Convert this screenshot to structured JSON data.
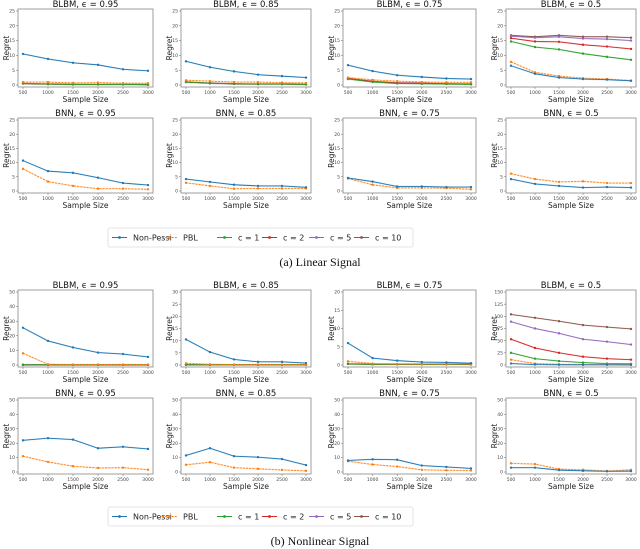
{
  "colors": {
    "Non-Pessi": "#1f77b4",
    "PBL": "#ff7f0e",
    "c = 1": "#2ca02c",
    "c = 2": "#d62728",
    "c = 5": "#9467bd",
    "c = 10": "#8c564b"
  },
  "legend": [
    "Non-Pessi",
    "PBL",
    "c = 1",
    "c = 2",
    "c = 5",
    "c = 10"
  ],
  "chart_data": [
    {
      "type": "line",
      "caption": "(a) Linear Signal",
      "xlabel": "Sample Size",
      "ylabel": "Regret",
      "xticks": [
        500,
        1000,
        1500,
        2000,
        2500,
        3000
      ],
      "panels": [
        {
          "title": "BLBM, ϵ = 0.95",
          "ylim": [
            0,
            25
          ],
          "yticks": [
            0,
            5,
            10,
            15,
            20,
            25
          ],
          "series": [
            {
              "name": "Non-Pessi",
              "values": [
                10.5,
                8.8,
                7.5,
                6.8,
                5.3,
                4.8
              ]
            },
            {
              "name": "PBL",
              "values": [
                1,
                1,
                0.7,
                0.8,
                0.6,
                0.6
              ]
            },
            {
              "name": "c = 1",
              "values": [
                0.5,
                0.3,
                0.2,
                0.2,
                0.2,
                0.1
              ]
            },
            {
              "name": "c = 2",
              "values": [
                0.5,
                0.3,
                0.2,
                0.2,
                0.2,
                0.1
              ]
            },
            {
              "name": "c = 5",
              "values": [
                0.5,
                0.3,
                0.2,
                0.2,
                0.2,
                0.1
              ]
            },
            {
              "name": "c = 10",
              "values": [
                0.5,
                0.3,
                0.2,
                0.2,
                0.2,
                0.1
              ]
            }
          ]
        },
        {
          "title": "BLBM, ϵ = 0.85",
          "ylim": [
            0,
            25
          ],
          "yticks": [
            0,
            5,
            10,
            15,
            20,
            25
          ],
          "series": [
            {
              "name": "Non-Pessi",
              "values": [
                8,
                6,
                4.6,
                3.5,
                3,
                2.5
              ]
            },
            {
              "name": "PBL",
              "values": [
                1.6,
                1.3,
                1,
                1,
                0.8,
                0.7
              ]
            },
            {
              "name": "c = 1",
              "values": [
                1,
                0.6,
                0.4,
                0.3,
                0.3,
                0.2
              ]
            },
            {
              "name": "c = 2",
              "values": [
                1,
                0.6,
                0.4,
                0.3,
                0.3,
                0.2
              ]
            },
            {
              "name": "c = 5",
              "values": [
                1,
                0.6,
                0.4,
                0.3,
                0.3,
                0.2
              ]
            },
            {
              "name": "c = 10",
              "values": [
                1,
                0.6,
                0.4,
                0.3,
                0.3,
                0.2
              ]
            }
          ]
        },
        {
          "title": "BLBM, ϵ = 0.75",
          "ylim": [
            0,
            25
          ],
          "yticks": [
            0,
            5,
            10,
            15,
            20,
            25
          ],
          "series": [
            {
              "name": "Non-Pessi",
              "values": [
                6.7,
                4.7,
                3.3,
                2.7,
                2.2,
                2
              ]
            },
            {
              "name": "PBL",
              "values": [
                2.5,
                1.7,
                1.3,
                1,
                0.9,
                0.9
              ]
            },
            {
              "name": "c = 1",
              "values": [
                2,
                1,
                0.5,
                0.4,
                0.3,
                0.2
              ]
            },
            {
              "name": "c = 2",
              "values": [
                2.2,
                1.2,
                0.7,
                0.6,
                0.4,
                0.3
              ]
            },
            {
              "name": "c = 5",
              "values": [
                2.2,
                1.2,
                0.7,
                0.6,
                0.4,
                0.3
              ]
            },
            {
              "name": "c = 10",
              "values": [
                2.2,
                1.2,
                0.7,
                0.6,
                0.4,
                0.3
              ]
            }
          ]
        },
        {
          "title": "BLBM, ϵ = 0.5",
          "ylim": [
            0,
            25
          ],
          "yticks": [
            0,
            5,
            10,
            15,
            20,
            25
          ],
          "series": [
            {
              "name": "Non-Pessi",
              "values": [
                6.5,
                3.8,
                2.5,
                2,
                1.8,
                1.4
              ]
            },
            {
              "name": "PBL",
              "values": [
                7.8,
                4.3,
                3,
                2.3,
                2,
                1.5
              ]
            },
            {
              "name": "c = 1",
              "values": [
                14.7,
                12.8,
                12,
                10.6,
                9.5,
                8.5
              ]
            },
            {
              "name": "c = 2",
              "values": [
                15.8,
                14.7,
                14.6,
                13.6,
                13,
                12.2
              ]
            },
            {
              "name": "c = 5",
              "values": [
                16.5,
                16,
                16.3,
                15.7,
                15.5,
                15
              ]
            },
            {
              "name": "c = 10",
              "values": [
                16.8,
                16.3,
                16.8,
                16.3,
                16.3,
                16
              ]
            }
          ]
        },
        {
          "title": "BNN, ϵ = 0.95",
          "ylim": [
            0,
            25
          ],
          "yticks": [
            0,
            5,
            10,
            15,
            20,
            25
          ],
          "series": [
            {
              "name": "Non-Pessi",
              "values": [
                10.7,
                7,
                6.4,
                4.7,
                2.8,
                2.1
              ]
            },
            {
              "name": "PBL",
              "values": [
                7.8,
                3.3,
                1.8,
                0.8,
                0.8,
                0.6
              ]
            }
          ]
        },
        {
          "title": "BNN, ϵ = 0.85",
          "ylim": [
            0,
            25
          ],
          "yticks": [
            0,
            5,
            10,
            15,
            20,
            25
          ],
          "series": [
            {
              "name": "Non-Pessi",
              "values": [
                4.2,
                3.2,
                2.2,
                1.8,
                1.8,
                1.3
              ]
            },
            {
              "name": "PBL",
              "values": [
                2.9,
                1.8,
                0.8,
                0.9,
                0.9,
                0.9
              ]
            }
          ]
        },
        {
          "title": "BNN, ϵ = 0.75",
          "ylim": [
            0,
            25
          ],
          "yticks": [
            0,
            5,
            10,
            15,
            20,
            25
          ],
          "series": [
            {
              "name": "Non-Pessi",
              "values": [
                4.6,
                3.3,
                1.6,
                1.6,
                1.4,
                1.4
              ]
            },
            {
              "name": "PBL",
              "values": [
                4.4,
                2.2,
                1.1,
                1.1,
                1,
                0.6
              ]
            }
          ]
        },
        {
          "title": "BNN, ϵ = 0.5",
          "ylim": [
            0,
            25
          ],
          "yticks": [
            0,
            5,
            10,
            15,
            20,
            25
          ],
          "series": [
            {
              "name": "Non-Pessi",
              "values": [
                4.2,
                2.5,
                1.8,
                1.2,
                1.4,
                1.2
              ]
            },
            {
              "name": "PBL",
              "values": [
                6.1,
                4.2,
                3.2,
                3.4,
                2.8,
                2.8
              ]
            }
          ]
        }
      ]
    },
    {
      "type": "line",
      "caption": "(b) Nonlinear Signal",
      "xlabel": "Sample Size",
      "ylabel": "Regret",
      "xticks": [
        500,
        1000,
        1500,
        2000,
        2500,
        3000
      ],
      "panels": [
        {
          "title": "BLBM, ϵ = 0.95",
          "ylim": [
            0,
            50
          ],
          "yticks": [
            0,
            10,
            20,
            30,
            40,
            50
          ],
          "series": [
            {
              "name": "Non-Pessi",
              "values": [
                25.5,
                16.5,
                12,
                8.5,
                7.5,
                5.5
              ]
            },
            {
              "name": "PBL",
              "values": [
                8,
                0.5,
                0.3,
                0.3,
                0.3,
                0.3
              ]
            },
            {
              "name": "c = 1",
              "values": [
                0.1,
                0.1,
                0.1,
                0.1,
                0.1,
                0.1
              ]
            },
            {
              "name": "c = 2",
              "values": [
                0.1,
                0.1,
                0.1,
                0.1,
                0.1,
                0.1
              ]
            },
            {
              "name": "c = 5",
              "values": [
                0.1,
                0.1,
                0.1,
                0.1,
                0.1,
                0.1
              ]
            },
            {
              "name": "c = 10",
              "values": [
                0.1,
                0.1,
                0.1,
                0.1,
                0.1,
                0.1
              ]
            }
          ]
        },
        {
          "title": "BLBM, ϵ = 0.85",
          "ylim": [
            0,
            30
          ],
          "yticks": [
            0,
            5,
            10,
            15,
            20,
            25,
            30
          ],
          "series": [
            {
              "name": "Non-Pessi",
              "values": [
                10.5,
                5.3,
                2.3,
                1.3,
                1.3,
                0.8
              ]
            },
            {
              "name": "PBL",
              "values": [
                0.7,
                0.3,
                0.2,
                0.2,
                0.2,
                0.2
              ]
            },
            {
              "name": "c = 1",
              "values": [
                0.1,
                0.1,
                0.1,
                0.1,
                0.1,
                0.1
              ]
            },
            {
              "name": "c = 2",
              "values": [
                0.1,
                0.1,
                0.1,
                0.1,
                0.1,
                0.1
              ]
            },
            {
              "name": "c = 5",
              "values": [
                0.1,
                0.1,
                0.1,
                0.1,
                0.1,
                0.1
              ]
            },
            {
              "name": "c = 10",
              "values": [
                0.1,
                0.1,
                0.1,
                0.1,
                0.1,
                0.1
              ]
            }
          ]
        },
        {
          "title": "BLBM, ϵ = 0.75",
          "ylim": [
            0,
            20
          ],
          "yticks": [
            0,
            5,
            10,
            15,
            20
          ],
          "series": [
            {
              "name": "Non-Pessi",
              "values": [
                6,
                1.9,
                1.2,
                0.8,
                0.7,
                0.5
              ]
            },
            {
              "name": "PBL",
              "values": [
                1,
                0.4,
                0.3,
                0.3,
                0.3,
                0.3
              ]
            },
            {
              "name": "c = 1",
              "values": [
                0.3,
                0.2,
                0.2,
                0.2,
                0.2,
                0.2
              ]
            },
            {
              "name": "c = 2",
              "values": [
                0.3,
                0.2,
                0.2,
                0.2,
                0.2,
                0.2
              ]
            },
            {
              "name": "c = 5",
              "values": [
                0.3,
                0.2,
                0.2,
                0.2,
                0.2,
                0.2
              ]
            },
            {
              "name": "c = 10",
              "values": [
                0.3,
                0.2,
                0.2,
                0.2,
                0.2,
                0.2
              ]
            }
          ]
        },
        {
          "title": "BLBM, ϵ = 0.5",
          "ylim": [
            0,
            150
          ],
          "yticks": [
            0,
            25,
            50,
            75,
            100,
            125,
            150
          ],
          "series": [
            {
              "name": "Non-Pessi",
              "values": [
                3,
                1,
                0.5,
                0.3,
                0.3,
                0.2
              ]
            },
            {
              "name": "PBL",
              "values": [
                11,
                3,
                1.5,
                1,
                0.8,
                0.7
              ]
            },
            {
              "name": "c = 1",
              "values": [
                25,
                13,
                8,
                5,
                3,
                2.5
              ]
            },
            {
              "name": "c = 2",
              "values": [
                53,
                35,
                25,
                17,
                13,
                11
              ]
            },
            {
              "name": "c = 5",
              "values": [
                89,
                75,
                65,
                53,
                48,
                42
              ]
            },
            {
              "name": "c = 10",
              "values": [
                104,
                97,
                90,
                82,
                78,
                74
              ]
            }
          ]
        },
        {
          "title": "BNN, ϵ = 0.95",
          "ylim": [
            0,
            50
          ],
          "yticks": [
            0,
            10,
            20,
            30,
            40,
            50
          ],
          "series": [
            {
              "name": "Non-Pessi",
              "values": [
                22,
                23.5,
                22.5,
                16.5,
                17.5,
                16
              ]
            },
            {
              "name": "PBL",
              "values": [
                11,
                7,
                4,
                2.8,
                3,
                1.6
              ]
            }
          ]
        },
        {
          "title": "BNN, ϵ = 0.85",
          "ylim": [
            0,
            50
          ],
          "yticks": [
            0,
            10,
            20,
            30,
            40,
            50
          ],
          "series": [
            {
              "name": "Non-Pessi",
              "values": [
                11.5,
                16.5,
                11,
                10.3,
                9,
                4.8
              ]
            },
            {
              "name": "PBL",
              "values": [
                5,
                6.8,
                3,
                2.2,
                1.4,
                0.8
              ]
            }
          ]
        },
        {
          "title": "BNN, ϵ = 0.75",
          "ylim": [
            0,
            50
          ],
          "yticks": [
            0,
            10,
            20,
            30,
            40,
            50
          ],
          "series": [
            {
              "name": "Non-Pessi",
              "values": [
                8,
                8.8,
                8.5,
                4.5,
                3.5,
                2.5
              ]
            },
            {
              "name": "PBL",
              "values": [
                7.5,
                5.2,
                3.8,
                1.5,
                1.2,
                1
              ]
            }
          ]
        },
        {
          "title": "BNN, ϵ = 0.5",
          "ylim": [
            0,
            50
          ],
          "yticks": [
            0,
            10,
            20,
            30,
            40,
            50
          ],
          "series": [
            {
              "name": "Non-Pessi",
              "values": [
                3,
                3,
                1.3,
                0.8,
                0.5,
                0.6
              ]
            },
            {
              "name": "PBL",
              "values": [
                6,
                5.5,
                2,
                1.5,
                0.7,
                1.5
              ]
            }
          ]
        }
      ]
    }
  ]
}
